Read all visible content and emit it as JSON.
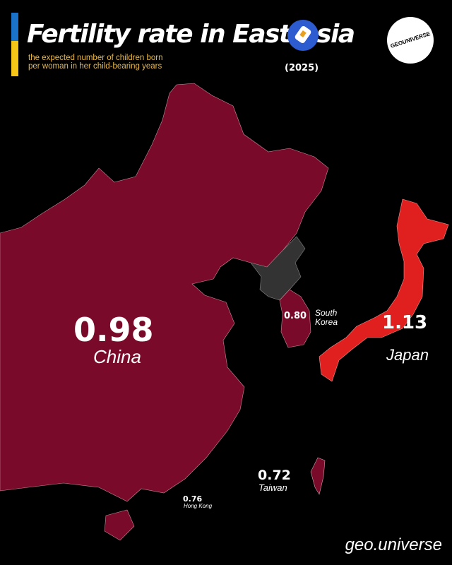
{
  "header": {
    "title": "Fertility rate in East Asia",
    "subtitle_line1": "the expected number of children born",
    "subtitle_line2": "per woman in her child-bearing years",
    "year": "(2025)",
    "logo_text": "GEOUNIVERSE",
    "accent_colors": {
      "blue": "#1a73c8",
      "yellow": "#f5c518",
      "subtitle": "#e8b84a"
    }
  },
  "map": {
    "colors": {
      "low": "#7a0a2a",
      "higher": "#e0201e",
      "no_data": "#333333",
      "background": "#000000"
    },
    "regions": [
      {
        "name": "China",
        "value": "0.98"
      },
      {
        "name": "South Korea",
        "value": "0.80"
      },
      {
        "name": "Japan",
        "value": "1.13"
      },
      {
        "name": "Taiwan",
        "value": "0.72"
      },
      {
        "name": "Hong Kong",
        "value": "0.76"
      }
    ],
    "south_korea_line1": "South",
    "south_korea_line2": "Korea"
  },
  "footer": {
    "handle": "geo.universe"
  }
}
